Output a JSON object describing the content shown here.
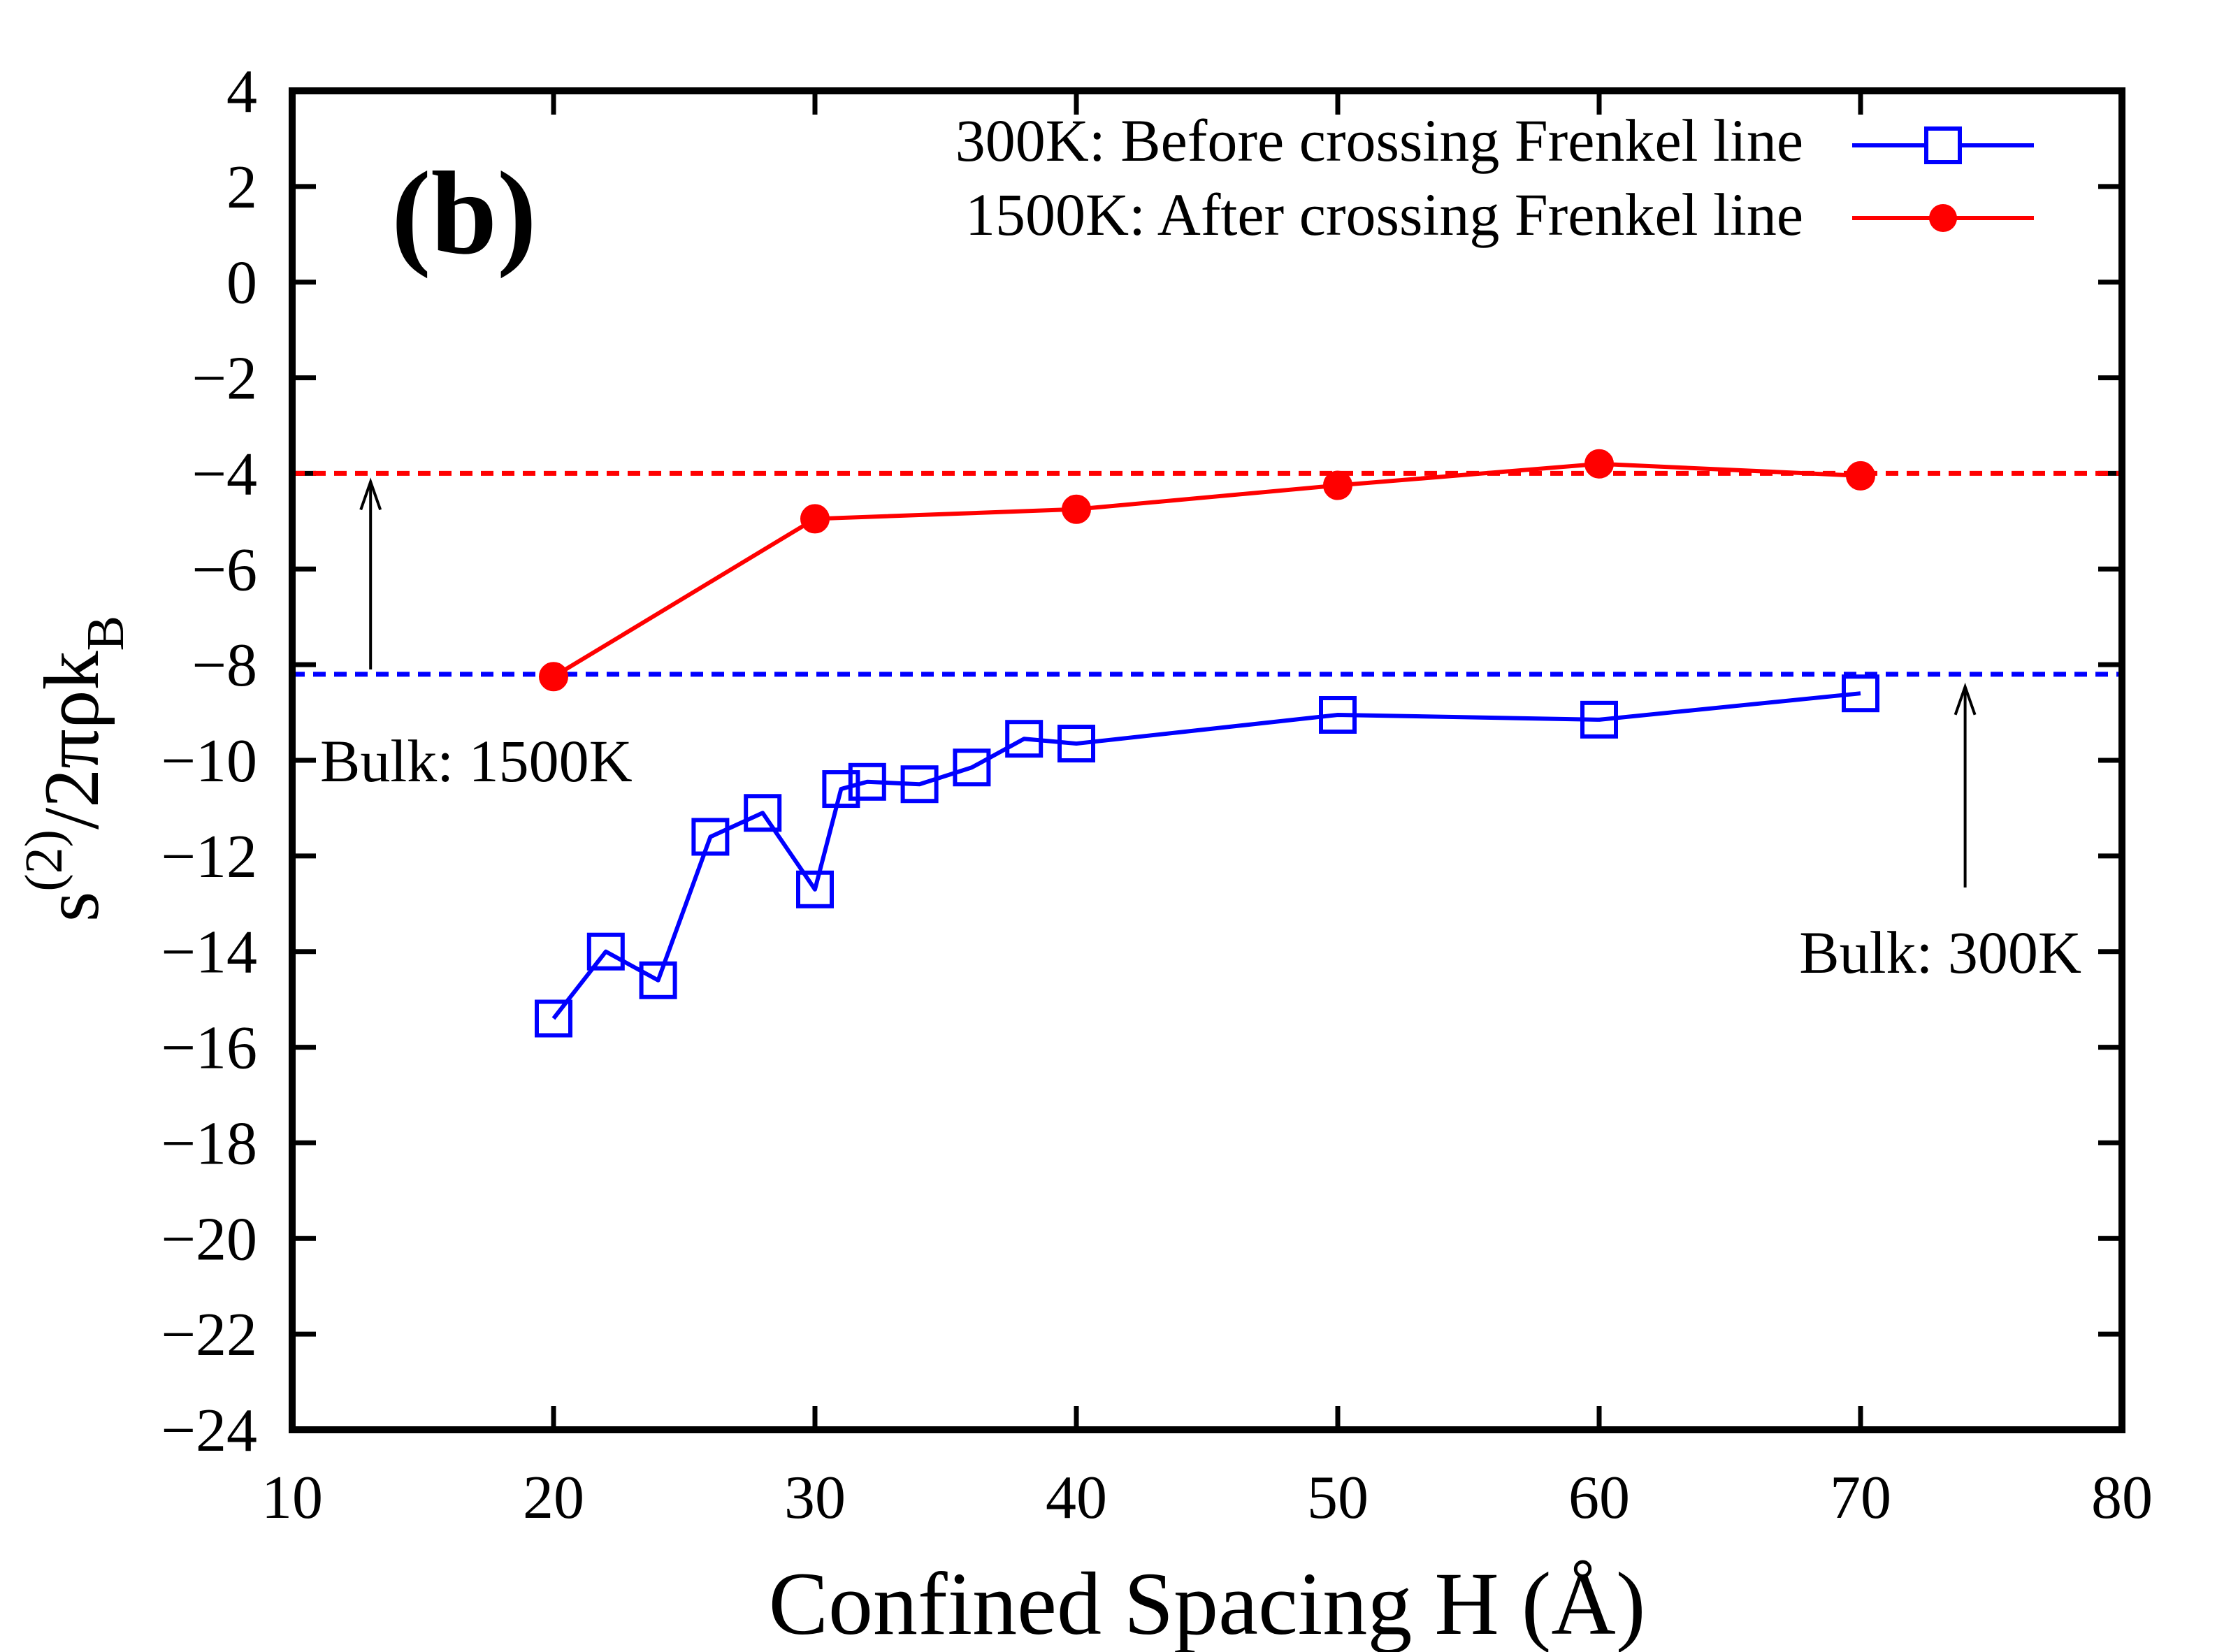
{
  "chart_data": {
    "type": "line",
    "panel_label": "(b)",
    "xlabel": "Confined Spacing H (Å)",
    "ylabel": {
      "base": "s",
      "sup": "(2)",
      "mid": "/2πρk",
      "sub": "B"
    },
    "xlim": [
      10,
      80
    ],
    "ylim": [
      -24,
      4
    ],
    "xticks": [
      10,
      20,
      30,
      40,
      50,
      60,
      70,
      80
    ],
    "yticks": [
      -24,
      -22,
      -20,
      -18,
      -16,
      -14,
      -12,
      -10,
      -8,
      -6,
      -4,
      -2,
      0,
      2,
      4
    ],
    "tick_labels": {
      "x": [
        "10",
        "20",
        "30",
        "40",
        "50",
        "60",
        "70",
        "80"
      ],
      "y": [
        "−24",
        "−22",
        "−20",
        "−18",
        "−16",
        "−14",
        "−12",
        "−10",
        "−8",
        "−6",
        "−4",
        "−2",
        "0",
        "2",
        "4"
      ]
    },
    "grid": false,
    "legend_position": "top-right",
    "series": [
      {
        "name": "300K: Before crossing Frenkel line",
        "color": "#0000ff",
        "marker": "open-square",
        "x": [
          20,
          22,
          24,
          26,
          28,
          30,
          31,
          32,
          34,
          36,
          38,
          40,
          50,
          60,
          70
        ],
        "y": [
          -15.4,
          -14.0,
          -14.6,
          -11.6,
          -11.1,
          -12.7,
          -10.6,
          -10.45,
          -10.5,
          -10.15,
          -9.55,
          -9.65,
          -9.05,
          -9.15,
          -8.6
        ]
      },
      {
        "name": "1500K: After crossing Frenkel line",
        "color": "#ff0000",
        "marker": "filled-circle",
        "x": [
          20,
          30,
          40,
          50,
          60,
          70
        ],
        "y": [
          -8.25,
          -4.95,
          -4.75,
          -4.25,
          -3.8,
          -4.05
        ]
      }
    ],
    "reference_lines": [
      {
        "label": "Bulk: 1500K",
        "y": -4.0,
        "color": "#ff0000",
        "style": "dashed",
        "arrow_x": 13
      },
      {
        "label": "Bulk: 300K",
        "y": -8.2,
        "color": "#0000ff",
        "style": "dashed",
        "arrow_x": 74
      }
    ]
  }
}
